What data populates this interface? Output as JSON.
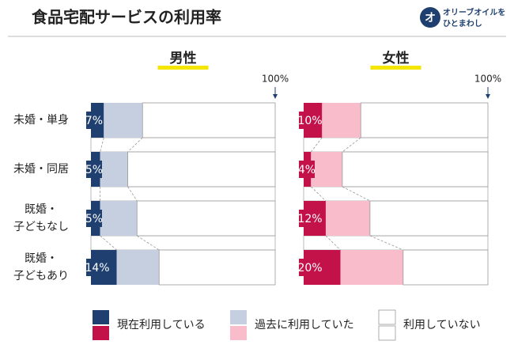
{
  "chart_data": {
    "type": "stacked-bar",
    "title": "食品宅配サービスの利用率",
    "logo": [
      "オリーブオイルを",
      "ひとまわし"
    ],
    "panels": [
      "男性",
      "女性"
    ],
    "categories": [
      [
        "未婚・単身"
      ],
      [
        "未婚・同居"
      ],
      [
        "既婚・",
        "子どもなし"
      ],
      [
        "既婚・",
        "子どもあり"
      ]
    ],
    "xlim": [
      0,
      100
    ],
    "xticks": [
      {
        "value": 100,
        "label": "100%"
      }
    ],
    "series": [
      {
        "name": "現在利用している",
        "colors": [
          "#1e3f6f",
          "#c3124a"
        ],
        "values": [
          [
            7,
            5,
            5,
            14
          ],
          [
            10,
            4,
            12,
            20
          ]
        ],
        "value_labels": [
          [
            "7%",
            "5%",
            "5%",
            "14%"
          ],
          [
            "10%",
            "4%",
            "12%",
            "20%"
          ]
        ]
      },
      {
        "name": "過去に利用していた",
        "colors": [
          "#c6cfe0",
          "#f8bccb"
        ],
        "values": [
          [
            21,
            15,
            20,
            23
          ],
          [
            21,
            17,
            24,
            34
          ]
        ]
      },
      {
        "name": "利用していない",
        "colors": [
          "#ffffff",
          "#ffffff"
        ],
        "values": [
          [
            72,
            80,
            75,
            63
          ],
          [
            69,
            79,
            64,
            46
          ]
        ]
      }
    ]
  }
}
